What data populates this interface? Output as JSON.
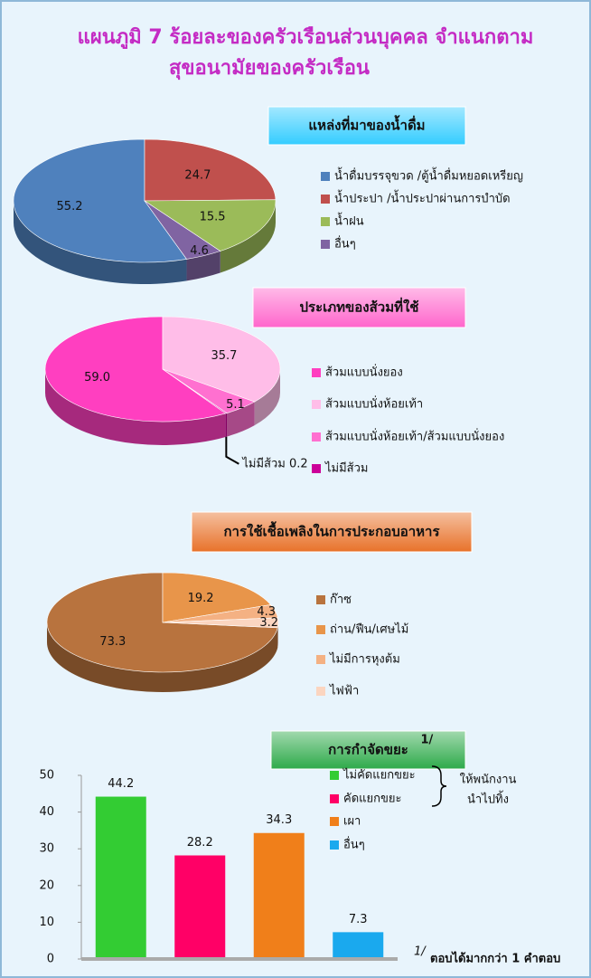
{
  "title": [
    "แผนภูมิ 7 ร้อยละของครัวเรือนส่วนบุคคล จำแนกตาม",
    "สุขอนามัยของครัวเรือน"
  ],
  "chart_data": [
    {
      "type": "pie",
      "title": "แหล่งที่มาของน้ำดื่ม",
      "categories": [
        "น้ำดื่มบรรจุขวด /ตู้น้ำดื่มหยอดเหรียญ",
        "น้ำประปา /น้ำประปาผ่านการบำบัด",
        "น้ำฝน",
        "อื่นๆ"
      ],
      "values": [
        55.2,
        24.7,
        15.5,
        4.6
      ],
      "colors": [
        "#4f81bd",
        "#c0504d",
        "#9bbb59",
        "#8064a2"
      ]
    },
    {
      "type": "pie",
      "title": "ประเภทของส้วมที่ใช้",
      "categories": [
        "ส้วมแบบนั่งยอง",
        "ส้วมแบบนั่งห้อยเท้า",
        "ส้วมแบบนั่งห้อยเท้า/ส้วมแบบนั่งยอง",
        "ไม่มีส้วม"
      ],
      "values": [
        59.0,
        35.7,
        5.1,
        0.2
      ],
      "value_labels": [
        "59.0",
        "35.7",
        "5.1",
        "ไม่มีส้วม 0.2"
      ],
      "colors": [
        "#ff3fc0",
        "#ffbde8",
        "#ff70d0",
        "#cc0099"
      ]
    },
    {
      "type": "pie",
      "title": "การใช้เชื้อเพลิงในการประกอบอาหาร",
      "categories": [
        "ก๊าซ",
        "ถ่าน/ฟืน/เศษไม้",
        "ไม่มีการหุงต้ม",
        "ไฟฟ้า"
      ],
      "values": [
        73.3,
        19.2,
        4.3,
        3.2
      ],
      "colors": [
        "#b8733e",
        "#e8954a",
        "#f4b183",
        "#fbd5c0"
      ]
    },
    {
      "type": "bar",
      "title": "การกำจัดขยะ",
      "title_note": "1/",
      "categories": [
        "ไม่คัดแยกขยะ",
        "คัดแยกขยะ",
        "เผา",
        "อื่นๆ"
      ],
      "values": [
        44.2,
        28.2,
        34.3,
        7.3
      ],
      "colors": [
        "#33cc33",
        "#ff0066",
        "#f07f1a",
        "#1aa9ee"
      ],
      "group_label": [
        "ให้พนักงาน",
        "นำไปทิ้ง"
      ],
      "ylim": [
        0,
        50
      ],
      "yticks": [
        0,
        10,
        20,
        30,
        40,
        50
      ]
    }
  ],
  "footnote": {
    "marker": "1/",
    "text": "ตอบได้มากกว่า 1 คำตอบ"
  }
}
